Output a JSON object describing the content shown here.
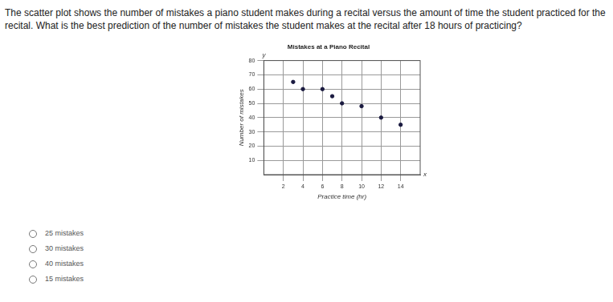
{
  "question": "The scatter plot shows the number of mistakes a piano student makes during a recital versus the amount of time the student practiced for the recital. What is the best prediction of the number of mistakes the student makes at the recital after 18 hours of practicing?",
  "chart_data": {
    "type": "scatter",
    "title": "Mistakes at a Piano Recital",
    "x_label": "Practice time (hr)",
    "y_label": "Number of mistakes",
    "x_axis_letter": "x",
    "y_axis_letter": "y",
    "x": [
      3,
      4,
      6,
      7,
      8,
      10,
      12,
      14
    ],
    "values": [
      65,
      60,
      60,
      55,
      50,
      48,
      40,
      35
    ],
    "color": "#1a1a40",
    "marker": "circle",
    "xlim": [
      0,
      16
    ],
    "xticks": [
      2,
      4,
      6,
      8,
      10,
      12,
      14
    ],
    "ylim": [
      0,
      80
    ],
    "yticks": [
      10,
      20,
      30,
      40,
      50,
      60,
      70,
      80
    ],
    "grid": true
  },
  "choices": [
    "25 mistakes",
    "30 mistakes",
    "40 mistakes",
    "15 mistakes"
  ]
}
